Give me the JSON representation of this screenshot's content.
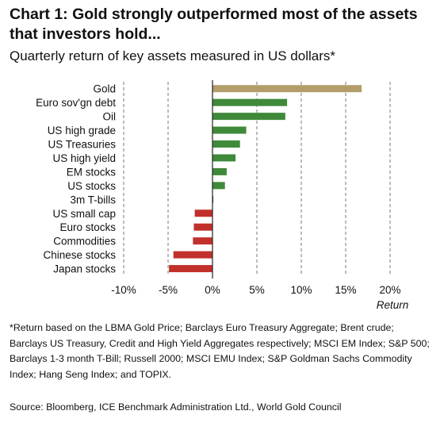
{
  "chart_title": "Chart 1: Gold strongly outperformed most of the assets that investors hold...",
  "chart_subtitle": "Quarterly return of key assets measured in US dollars*",
  "footnote": "*Return based on the LBMA Gold Price; Barclays Euro Treasury Aggregate; Brent crude; Barclays US Treasury, Credit and High Yield Aggregates respectively; MSCI EM Index; S&P 500; Barclays 1-3 month T-Bill; Russell 2000; MSCI EMU Index; S&P Goldman Sachs Commodity Index; Hang Seng Index; and TOPIX.",
  "source": "Source: Bloomberg, ICE Benchmark Administration Ltd., World Gold Council",
  "colors": {
    "gold": "#b39d6b",
    "positive": "#3f8a3a",
    "negative": "#c2302b",
    "grid": "#7a7a7a"
  },
  "chart_data": {
    "type": "bar",
    "orientation": "horizontal",
    "categories": [
      "Gold",
      "Euro sov'gn debt",
      "Oil",
      "US high grade",
      "US Treasuries",
      "US high yield",
      "EM stocks",
      "US stocks",
      "3m T-bills",
      "US small cap",
      "Euro stocks",
      "Commodities",
      "Chinese stocks",
      "Japan stocks"
    ],
    "values": [
      16.8,
      8.4,
      8.2,
      3.8,
      3.1,
      2.6,
      1.6,
      1.4,
      0.1,
      -2.0,
      -2.1,
      -2.2,
      -4.4,
      -4.9
    ],
    "xlabel": "Return",
    "xlim": [
      -10,
      20
    ],
    "xticks": [
      -10,
      -5,
      0,
      5,
      10,
      15,
      20
    ],
    "xtick_labels": [
      "-10%",
      "-5%",
      "0%",
      "5%",
      "10%",
      "15%",
      "20%"
    ],
    "grid": "vertical dashed at 5% intervals",
    "legend": "none"
  }
}
